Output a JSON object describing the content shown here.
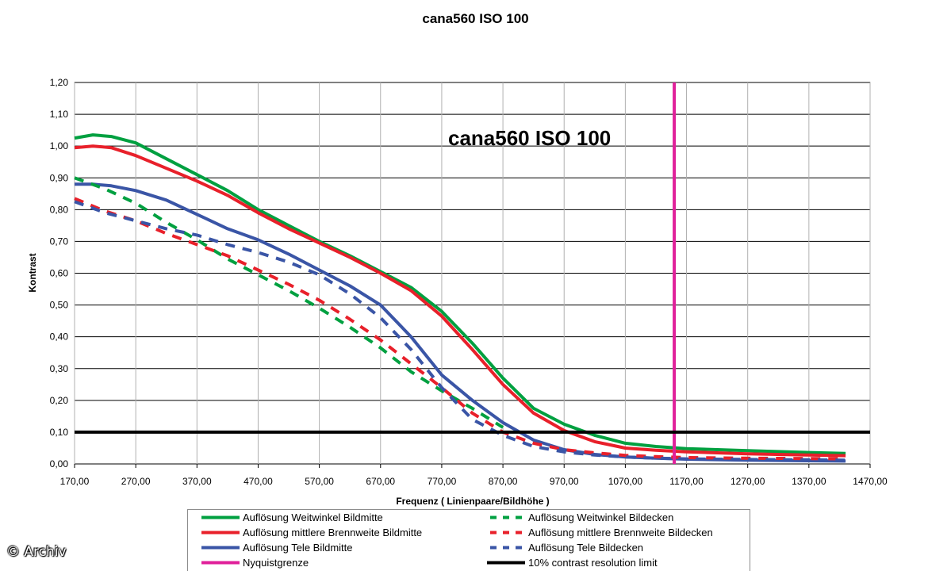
{
  "title": "cana560 ISO 100",
  "credit": "© Archiv",
  "chart_data": {
    "type": "line",
    "title": "cana560 ISO 100",
    "inner_title": "cana560 ISO 100",
    "xlabel": "Frequenz ( Linienpaare/Bildhöhe )",
    "ylabel": "Kontrast",
    "xlim": [
      170,
      1470
    ],
    "ylim": [
      0,
      1.2
    ],
    "x_ticks": [
      "170,00",
      "270,00",
      "370,00",
      "470,00",
      "570,00",
      "670,00",
      "770,00",
      "870,00",
      "970,00",
      "1070,00",
      "1170,00",
      "1270,00",
      "1370,00",
      "1470,00"
    ],
    "y_ticks": [
      "0,00",
      "0,10",
      "0,20",
      "0,30",
      "0,40",
      "0,50",
      "0,60",
      "0,70",
      "0,80",
      "0,90",
      "1,00",
      "1,10",
      "1,20"
    ],
    "grid": true,
    "legend_position": "bottom",
    "series": [
      {
        "name": "Auflösung Weitwinkel Bildmitte",
        "color": "#00a040",
        "dash": "solid",
        "x": [
          170,
          200,
          230,
          270,
          320,
          370,
          420,
          470,
          520,
          570,
          620,
          670,
          720,
          770,
          820,
          870,
          920,
          970,
          1020,
          1070,
          1120,
          1170,
          1270,
          1370,
          1430
        ],
        "y": [
          1.025,
          1.035,
          1.03,
          1.01,
          0.96,
          0.91,
          0.86,
          0.8,
          0.75,
          0.7,
          0.655,
          0.605,
          0.555,
          0.48,
          0.38,
          0.27,
          0.175,
          0.125,
          0.09,
          0.065,
          0.055,
          0.048,
          0.042,
          0.036,
          0.033
        ]
      },
      {
        "name": "Auflösung mittlere Brennweite Bildmitte",
        "color": "#e8202a",
        "dash": "solid",
        "x": [
          170,
          200,
          230,
          270,
          320,
          370,
          420,
          470,
          520,
          570,
          620,
          670,
          720,
          770,
          820,
          870,
          920,
          970,
          1020,
          1070,
          1120,
          1170,
          1270,
          1370,
          1430
        ],
        "y": [
          0.995,
          1.0,
          0.995,
          0.97,
          0.93,
          0.89,
          0.845,
          0.79,
          0.74,
          0.695,
          0.65,
          0.6,
          0.545,
          0.465,
          0.36,
          0.25,
          0.16,
          0.105,
          0.07,
          0.05,
          0.043,
          0.038,
          0.032,
          0.028,
          0.026
        ]
      },
      {
        "name": "Auflösung Tele Bildmitte",
        "color": "#3a55a6",
        "dash": "solid",
        "x": [
          170,
          200,
          230,
          270,
          320,
          370,
          420,
          470,
          520,
          570,
          620,
          670,
          720,
          770,
          820,
          870,
          920,
          970,
          1020,
          1070,
          1120,
          1170,
          1270,
          1370,
          1430
        ],
        "y": [
          0.88,
          0.88,
          0.875,
          0.86,
          0.83,
          0.785,
          0.74,
          0.705,
          0.66,
          0.61,
          0.56,
          0.5,
          0.4,
          0.28,
          0.2,
          0.13,
          0.075,
          0.045,
          0.03,
          0.022,
          0.018,
          0.015,
          0.012,
          0.01,
          0.009
        ]
      },
      {
        "name": "Auflösung Weitwinkel Bildecken",
        "color": "#00a040",
        "dash": "dashed",
        "x": [
          170,
          220,
          270,
          320,
          370,
          420,
          470,
          520,
          570,
          620,
          670,
          720,
          770,
          820,
          870
        ],
        "y": [
          0.9,
          0.865,
          0.82,
          0.76,
          0.705,
          0.645,
          0.595,
          0.545,
          0.49,
          0.43,
          0.365,
          0.29,
          0.23,
          0.175,
          0.115
        ]
      },
      {
        "name": "Auflösung mittlere Brennweite Bildecken",
        "color": "#e8202a",
        "dash": "dashed",
        "x": [
          170,
          220,
          270,
          320,
          370,
          420,
          470,
          520,
          570,
          620,
          670,
          720,
          770,
          820,
          870,
          920,
          970,
          1020,
          1070,
          1120,
          1170,
          1270,
          1370,
          1430
        ],
        "y": [
          0.835,
          0.795,
          0.765,
          0.725,
          0.69,
          0.655,
          0.61,
          0.565,
          0.515,
          0.455,
          0.39,
          0.315,
          0.24,
          0.16,
          0.1,
          0.065,
          0.045,
          0.035,
          0.027,
          0.023,
          0.02,
          0.018,
          0.017,
          0.016
        ]
      },
      {
        "name": "Auflösung Tele Bildecken",
        "color": "#3a55a6",
        "dash": "dashed",
        "x": [
          170,
          220,
          270,
          320,
          370,
          420,
          470,
          520,
          570,
          620,
          670,
          720,
          770,
          820,
          870,
          920,
          970,
          1020,
          1070,
          1120,
          1170,
          1270,
          1370,
          1430
        ],
        "y": [
          0.825,
          0.79,
          0.765,
          0.74,
          0.72,
          0.69,
          0.665,
          0.635,
          0.595,
          0.535,
          0.46,
          0.36,
          0.24,
          0.14,
          0.09,
          0.055,
          0.038,
          0.028,
          0.022,
          0.018,
          0.016,
          0.014,
          0.013,
          0.012
        ]
      },
      {
        "name": "Nyquistgrenze",
        "color": "#e0209a",
        "dash": "solid",
        "x": [
          1150,
          1150
        ],
        "y": [
          0,
          1.2
        ]
      },
      {
        "name": "10% contrast resolution limit",
        "color": "#000000",
        "dash": "solid",
        "x": [
          170,
          1470
        ],
        "y": [
          0.1,
          0.1
        ]
      }
    ]
  },
  "legend": {
    "items": [
      {
        "label": "Auflösung Weitwinkel Bildmitte",
        "color": "#00a040",
        "dash": "solid"
      },
      {
        "label": "Auflösung Weitwinkel Bildecken",
        "color": "#00a040",
        "dash": "dashed"
      },
      {
        "label": "Auflösung mittlere Brennweite Bildmitte",
        "color": "#e8202a",
        "dash": "solid"
      },
      {
        "label": "Auflösung mittlere Brennweite Bildecken",
        "color": "#e8202a",
        "dash": "dashed"
      },
      {
        "label": "Auflösung Tele Bildmitte",
        "color": "#3a55a6",
        "dash": "solid"
      },
      {
        "label": "Auflösung Tele Bildecken",
        "color": "#3a55a6",
        "dash": "dashed"
      },
      {
        "label": "Nyquistgrenze",
        "color": "#e0209a",
        "dash": "solid"
      },
      {
        "label": "10% contrast resolution limit",
        "color": "#000000",
        "dash": "solid"
      }
    ]
  }
}
